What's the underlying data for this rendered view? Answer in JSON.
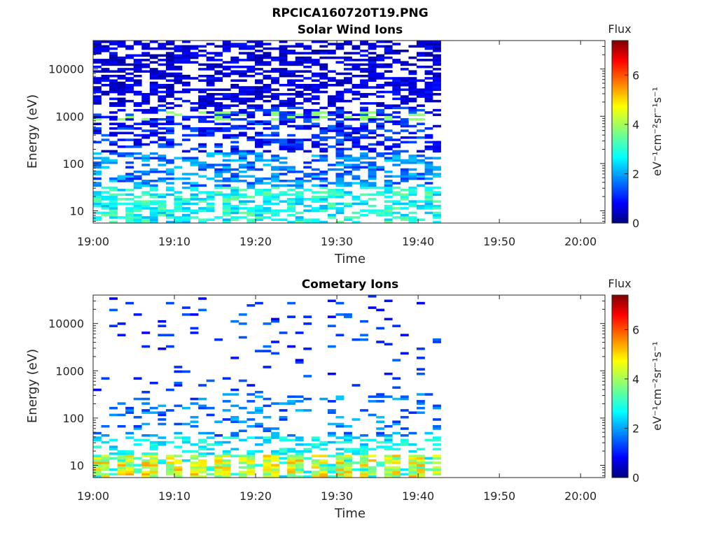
{
  "figure_title": "RPCICA160720T19.PNG",
  "colormap": [
    "#00007f",
    "#0000ff",
    "#007fff",
    "#00ffff",
    "#7fff7f",
    "#ffff00",
    "#ff7f00",
    "#ff0000",
    "#7f0000"
  ],
  "chart_data": [
    {
      "type": "heatmap",
      "title": "Solar Wind Ions",
      "xlabel": "Time",
      "ylabel": "Energy (eV)",
      "x_ticks": [
        "19:00",
        "19:10",
        "19:20",
        "19:30",
        "19:40",
        "19:50",
        "20:00"
      ],
      "xlim": [
        "19:00",
        "20:03"
      ],
      "data_end": "19:42.8",
      "y_scale": "log",
      "ylim": [
        5.5,
        40000
      ],
      "y_ticks": [
        "10",
        "100",
        "1000",
        "10000"
      ],
      "colorbar": {
        "title": "Flux",
        "label": "eV⁻¹cm⁻²sr⁻¹s⁻¹",
        "ticks": [
          "0",
          "2",
          "4",
          "6"
        ],
        "range": [
          0,
          7.4
        ]
      }
    },
    {
      "type": "heatmap",
      "title": "Cometary Ions",
      "xlabel": "Time",
      "ylabel": "Energy (eV)",
      "x_ticks": [
        "19:00",
        "19:10",
        "19:20",
        "19:30",
        "19:40",
        "19:50",
        "20:00"
      ],
      "xlim": [
        "19:00",
        "20:03"
      ],
      "data_end": "19:42.8",
      "y_scale": "log",
      "ylim": [
        5.5,
        40000
      ],
      "y_ticks": [
        "10",
        "100",
        "1000",
        "10000"
      ],
      "colorbar": {
        "title": "Flux",
        "label": "eV⁻¹cm⁻²sr⁻¹s⁻¹",
        "ticks": [
          "0",
          "2",
          "4",
          "6"
        ],
        "range": [
          0,
          7.4
        ]
      }
    }
  ]
}
